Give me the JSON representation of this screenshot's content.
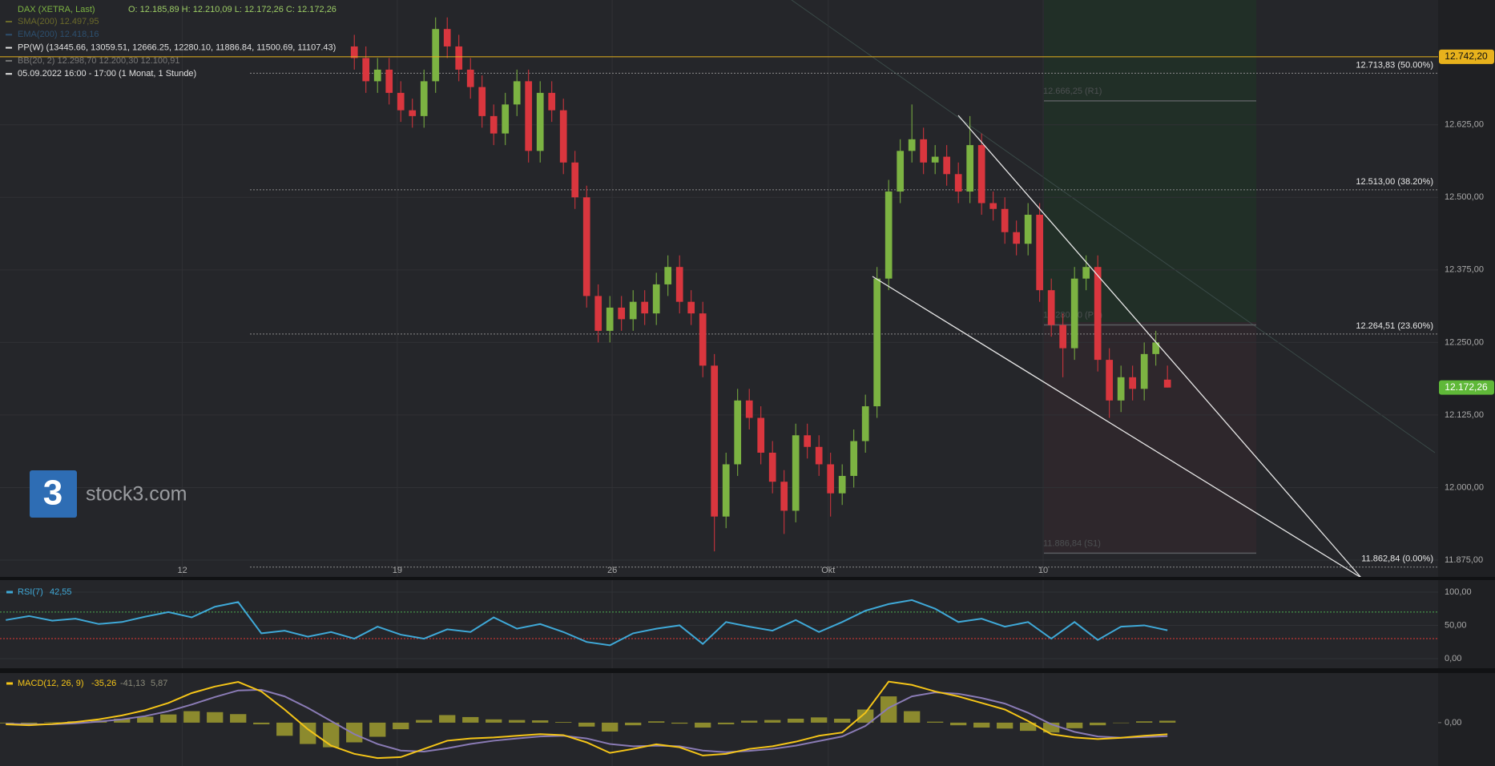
{
  "chart_data": [
    {
      "type": "candlestick",
      "title": "DAX (XETRA, Last)",
      "ohlc_text": "O: 12.185,89  H: 12.210,09  L: 12.172,26  C: 12.172,26",
      "indicator_labels": [
        "SMA(200) 12.497,95",
        "EMA(200) 12.418,16",
        "PP(W)  (13445.66, 13059.51, 12666.25, 12280.10, 11886.84, 11500.69, 11107.43)",
        "BB(20, 2)  12.298,70  12.200,30  12.100,91",
        "05.09.2022 16:00 - 17:00   (1 Monat, 1 Stunde)"
      ],
      "indicator_colors": [
        "#6b6a2a",
        "#2d4f6e",
        "#e0e0e0",
        "#777777",
        "#e0e0e0"
      ],
      "watermark": "stock3.com",
      "logo_text": "3",
      "xlim": [
        -30.5,
        93.3
      ],
      "xticks": [
        {
          "value": -14.8,
          "label": "12"
        },
        {
          "value": 3.7,
          "label": "19"
        },
        {
          "value": 22.2,
          "label": "26"
        },
        {
          "value": 40.8,
          "label": "Okt"
        },
        {
          "value": 59.3,
          "label": "10"
        }
      ],
      "ylim": [
        11846,
        12840
      ],
      "yticks": [
        {
          "value": 11875,
          "label": "11.875,00"
        },
        {
          "value": 12000,
          "label": "12.000,00"
        },
        {
          "value": 12125,
          "label": "12.125,00"
        },
        {
          "value": 12250,
          "label": "12.250,00"
        },
        {
          "value": 12375,
          "label": "12.375,00"
        },
        {
          "value": 12500,
          "label": "12.500,00"
        },
        {
          "value": 12625,
          "label": "12.625,00"
        }
      ],
      "grid": true,
      "up_color": "#7cb342",
      "down_color": "#d9363e",
      "levels": [
        {
          "value": 12713.83,
          "label": "12.713,83 (50.00%)"
        },
        {
          "value": 12513.0,
          "label": "12.513,00 (38.20%)"
        },
        {
          "value": 12264.51,
          "label": "12.264,51 (23.60%)"
        },
        {
          "value": 11862.84,
          "label": "11.862,84 (0.00%)"
        }
      ],
      "pivots": [
        {
          "value": 12666.25,
          "label": "12.666,25 (R1)"
        },
        {
          "value": 12280.1,
          "label": "12.280,10 (PP)"
        },
        {
          "value": 11886.84,
          "label": "11.886,84 (S1)"
        }
      ],
      "marker_line": {
        "value": 12742.2,
        "label": "12.742,20",
        "color": "#e8b21c"
      },
      "last_price": {
        "value": 12172.26,
        "label": "12.172,26",
        "color": "#5fb838"
      },
      "x": [
        0,
        1,
        2,
        3,
        4,
        5,
        6,
        7,
        8,
        9,
        10,
        11,
        12,
        13,
        14,
        15,
        16,
        17,
        18,
        19,
        20,
        21,
        22,
        23,
        24,
        25,
        26,
        27,
        28,
        29,
        30,
        31,
        32,
        33,
        34,
        35,
        36,
        37,
        38,
        39,
        40,
        41,
        42,
        43,
        44,
        45,
        46,
        47,
        48,
        49,
        50,
        51,
        52,
        53,
        54,
        55,
        56,
        57,
        58,
        59,
        60,
        61,
        62,
        63,
        64,
        65,
        66,
        67,
        68,
        69,
        70
      ],
      "open": [
        12760,
        12740,
        12700,
        12720,
        12680,
        12650,
        12640,
        12700,
        12790,
        12760,
        12720,
        12690,
        12640,
        12610,
        12660,
        12700,
        12580,
        12680,
        12650,
        12560,
        12500,
        12330,
        12270,
        12310,
        12290,
        12320,
        12300,
        12350,
        12380,
        12320,
        12300,
        12210,
        11950,
        12040,
        12150,
        12120,
        12060,
        12010,
        11960,
        12090,
        12070,
        12040,
        11990,
        12020,
        12080,
        12140,
        12360,
        12510,
        12580,
        12600,
        12560,
        12570,
        12540,
        12510,
        12590,
        12490,
        12480,
        12440,
        12420,
        12470,
        12340,
        12280,
        12240,
        12360,
        12380,
        12220,
        12150,
        12190,
        12170,
        12230,
        12185.89
      ],
      "high": [
        12780,
        12760,
        12740,
        12740,
        12700,
        12670,
        12720,
        12810,
        12810,
        12780,
        12740,
        12710,
        12660,
        12680,
        12720,
        12720,
        12700,
        12700,
        12670,
        12580,
        12520,
        12350,
        12330,
        12330,
        12340,
        12340,
        12370,
        12400,
        12400,
        12340,
        12320,
        12230,
        12060,
        12170,
        12170,
        12140,
        12080,
        12030,
        12110,
        12110,
        12090,
        12060,
        12040,
        12100,
        12160,
        12380,
        12530,
        12600,
        12660,
        12620,
        12590,
        12590,
        12560,
        12640,
        12610,
        12510,
        12500,
        12460,
        12490,
        12490,
        12360,
        12300,
        12380,
        12400,
        12400,
        12240,
        12210,
        12210,
        12250,
        12270,
        12210.09
      ],
      "low": [
        12720,
        12680,
        12680,
        12660,
        12630,
        12620,
        12620,
        12680,
        12740,
        12700,
        12670,
        12620,
        12590,
        12590,
        12640,
        12560,
        12560,
        12630,
        12540,
        12480,
        12310,
        12250,
        12250,
        12270,
        12270,
        12280,
        12280,
        12330,
        12300,
        12280,
        12190,
        11890,
        11930,
        12020,
        12100,
        12040,
        11990,
        11920,
        11940,
        12050,
        12020,
        11950,
        11970,
        12000,
        12060,
        12120,
        12340,
        12490,
        12560,
        12540,
        12540,
        12520,
        12490,
        12490,
        12470,
        12460,
        12420,
        12400,
        12400,
        12320,
        12260,
        12190,
        12220,
        12340,
        12200,
        12120,
        12130,
        12150,
        12150,
        12210,
        12172.26
      ],
      "close": [
        12740,
        12700,
        12720,
        12680,
        12650,
        12640,
        12700,
        12790,
        12760,
        12720,
        12690,
        12640,
        12610,
        12660,
        12700,
        12580,
        12680,
        12650,
        12560,
        12500,
        12330,
        12270,
        12310,
        12290,
        12320,
        12300,
        12350,
        12380,
        12320,
        12300,
        12210,
        11950,
        12040,
        12150,
        12120,
        12060,
        12010,
        11960,
        12090,
        12070,
        12040,
        11990,
        12020,
        12080,
        12140,
        12360,
        12510,
        12580,
        12600,
        12560,
        12570,
        12540,
        12510,
        12590,
        12490,
        12480,
        12440,
        12420,
        12470,
        12340,
        12280,
        12240,
        12360,
        12380,
        12220,
        12150,
        12190,
        12170,
        12230,
        12250,
        12172.26
      ]
    },
    {
      "type": "line",
      "ylim": [
        -14.5,
        118
      ],
      "yticks": [
        {
          "value": 0,
          "label": "0,00"
        },
        {
          "value": 50,
          "label": "50,00"
        },
        {
          "value": 100,
          "label": "100,00"
        }
      ],
      "levels": [
        {
          "value": 70,
          "color": "#4caf50"
        },
        {
          "value": 30,
          "color": "#e53935"
        }
      ],
      "x": [
        -30,
        -28,
        -26,
        -24,
        -22,
        -20,
        -18,
        -16,
        -14,
        -12,
        -10,
        -8,
        -6,
        -4,
        -2,
        0,
        2,
        4,
        6,
        8,
        10,
        12,
        14,
        16,
        18,
        20,
        22,
        24,
        26,
        28,
        30,
        32,
        34,
        36,
        38,
        40,
        42,
        44,
        46,
        48,
        50,
        52,
        54,
        56,
        58,
        60,
        62,
        64,
        66,
        68,
        70
      ],
      "series": [
        {
          "name": "RSI(7)",
          "legend_value": "42,55",
          "color": "#3fa9d8",
          "values": [
            58,
            64,
            57,
            60,
            52,
            55,
            63,
            70,
            62,
            78,
            85,
            38,
            42,
            33,
            40,
            30,
            48,
            36,
            30,
            44,
            40,
            62,
            45,
            52,
            40,
            25,
            20,
            38,
            45,
            50,
            22,
            55,
            48,
            42,
            58,
            40,
            55,
            72,
            82,
            88,
            75,
            55,
            60,
            48,
            55,
            30,
            55,
            28,
            48,
            50,
            42.55
          ]
        }
      ]
    },
    {
      "type": "macd",
      "ylim": [
        -132,
        151
      ],
      "yticks": [
        {
          "value": 0,
          "label": "0,00"
        }
      ],
      "x": [
        -30,
        -28,
        -26,
        -24,
        -22,
        -20,
        -18,
        -16,
        -14,
        -12,
        -10,
        -8,
        -6,
        -4,
        -2,
        0,
        2,
        4,
        6,
        8,
        10,
        12,
        14,
        16,
        18,
        20,
        22,
        24,
        26,
        28,
        30,
        32,
        34,
        36,
        38,
        40,
        42,
        44,
        46,
        48,
        50,
        52,
        54,
        56,
        58,
        60,
        62,
        64,
        66,
        68,
        70
      ],
      "title": "MACD(12, 26, 9)",
      "series": [
        {
          "name": "MACD",
          "legend_value": "-35,26",
          "color": "#f5c518",
          "values": [
            -5,
            -8,
            -4,
            2,
            10,
            22,
            38,
            60,
            90,
            110,
            124,
            95,
            40,
            -20,
            -70,
            -95,
            -108,
            -105,
            -80,
            -55,
            -48,
            -45,
            -40,
            -35,
            -38,
            -60,
            -92,
            -80,
            -66,
            -75,
            -100,
            -95,
            -80,
            -72,
            -58,
            -40,
            -30,
            30,
            125,
            115,
            95,
            80,
            60,
            40,
            5,
            -35,
            -45,
            -50,
            -46,
            -40,
            -35.26
          ]
        },
        {
          "name": "Signal",
          "legend_value": "-41,13",
          "color": "#8a7bb5",
          "values": [
            -3,
            -5,
            -5,
            -2,
            3,
            10,
            20,
            35,
            55,
            78,
            98,
            100,
            80,
            45,
            5,
            -35,
            -65,
            -85,
            -88,
            -78,
            -65,
            -55,
            -48,
            -42,
            -40,
            -48,
            -65,
            -72,
            -70,
            -72,
            -85,
            -90,
            -86,
            -80,
            -70,
            -56,
            -42,
            -10,
            45,
            80,
            92,
            88,
            75,
            58,
            30,
            -5,
            -28,
            -42,
            -46,
            -44,
            -41.13
          ]
        },
        {
          "name": "Histogram",
          "legend_value": "5,87",
          "color": "#8c8a2e",
          "values": [
            -2,
            -3,
            1,
            4,
            7,
            12,
            18,
            25,
            35,
            32,
            26,
            -5,
            -40,
            -65,
            -75,
            -60,
            -43,
            -20,
            8,
            23,
            17,
            10,
            8,
            7,
            2,
            -12,
            -27,
            -8,
            4,
            -3,
            -15,
            -5,
            6,
            8,
            12,
            16,
            12,
            40,
            80,
            35,
            3,
            -8,
            -15,
            -18,
            -25,
            -30,
            -17,
            -8,
            0,
            4,
            5.87
          ]
        }
      ]
    }
  ]
}
